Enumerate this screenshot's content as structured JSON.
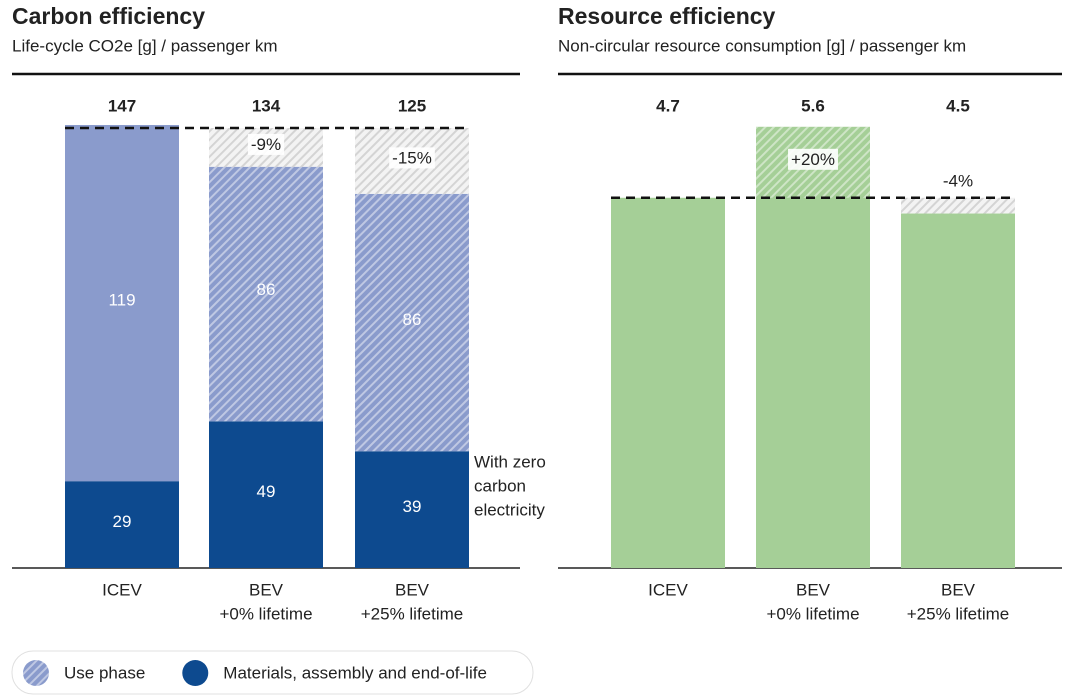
{
  "chart_data": [
    {
      "type": "stacked-bar",
      "title": "Carbon efficiency",
      "subtitle": "Life-cycle CO2e [g] / passenger km",
      "categories": [
        [
          "ICEV"
        ],
        [
          "BEV",
          "+0% lifetime"
        ],
        [
          "BEV",
          "+25% lifetime"
        ]
      ],
      "series": [
        {
          "name": "Materials, assembly and end-of-life",
          "color": "#0d4a8f",
          "values": [
            29,
            49,
            39
          ],
          "hatched": [
            false,
            false,
            false
          ]
        },
        {
          "name": "Use phase",
          "color": "#8a9bcc",
          "values": [
            119,
            86,
            86
          ],
          "hatched": [
            false,
            true,
            true
          ]
        }
      ],
      "totals": [
        147,
        134,
        125
      ],
      "reference": 147,
      "changes": [
        null,
        -9,
        -15
      ],
      "change_labels": [
        null,
        "-9%",
        "-15%"
      ],
      "annotation": [
        "With zero",
        "carbon",
        "electricity"
      ],
      "ylim": [
        0,
        150
      ]
    },
    {
      "type": "bar",
      "title": "Resource efficiency",
      "subtitle": "Non-circular resource consumption [g] / passenger km",
      "categories": [
        [
          "ICEV"
        ],
        [
          "BEV",
          "+0% lifetime"
        ],
        [
          "BEV",
          "+25% lifetime"
        ]
      ],
      "color": "#a5cf97",
      "values": [
        4.7,
        5.6,
        4.5
      ],
      "reference": 4.7,
      "changes": [
        null,
        20,
        -4
      ],
      "change_labels": [
        null,
        "+20%",
        "-4%"
      ],
      "ylim": [
        0,
        5.7
      ]
    }
  ]
}
